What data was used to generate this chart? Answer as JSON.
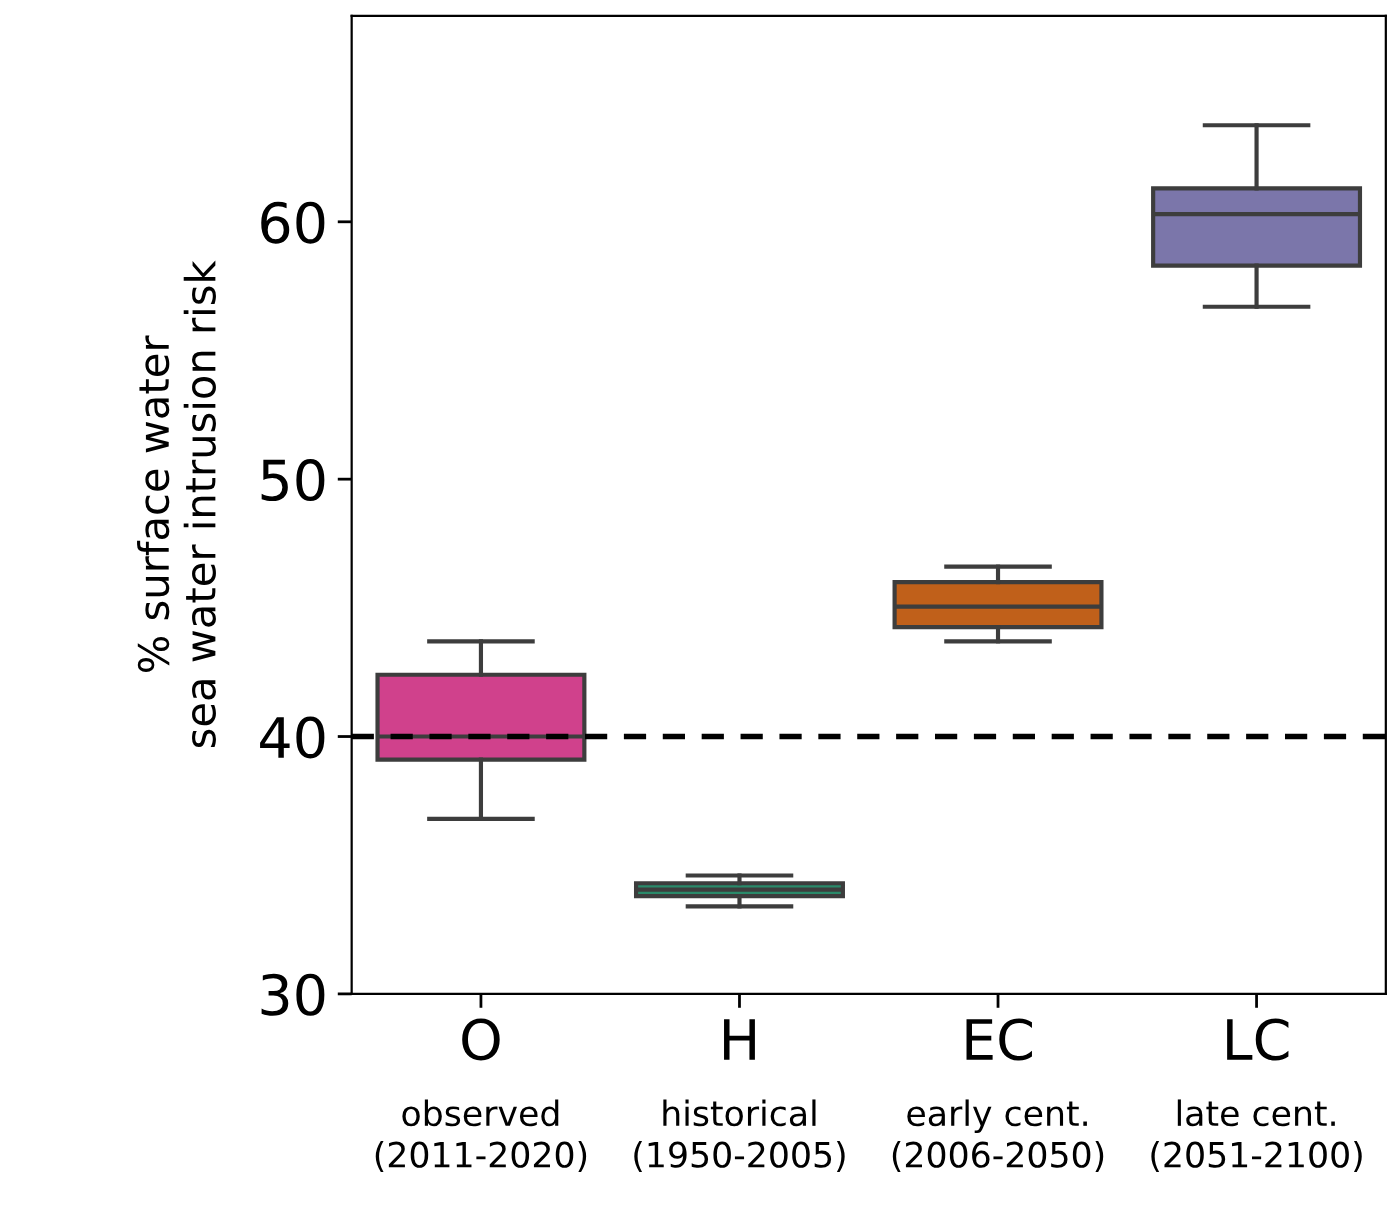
{
  "chart_data": {
    "type": "box",
    "ylabel": "% surface water\nsea water intrusion risk",
    "categories": [
      "O",
      "H",
      "EC",
      "LC"
    ],
    "annotations": [
      "observed\n(2011-2020)",
      "historical\n(1950-2005)",
      "early cent.\n(2006-2050)",
      "late cent.\n(2051-2100)"
    ],
    "colors": [
      "#d0418c",
      "#2a8a6a",
      "#c0601a",
      "#7b76aa"
    ],
    "boxes": [
      {
        "low": 36.8,
        "q1": 39.1,
        "median": 40.0,
        "q3": 42.4,
        "high": 43.7
      },
      {
        "low": 33.4,
        "q1": 33.8,
        "median": 34.05,
        "q3": 34.3,
        "high": 34.6
      },
      {
        "low": 43.7,
        "q1": 44.25,
        "median": 45.05,
        "q3": 46.0,
        "high": 46.6
      },
      {
        "low": 56.7,
        "q1": 58.3,
        "median": 60.3,
        "q3": 61.3,
        "high": 63.75
      }
    ],
    "ylim": [
      30,
      68
    ],
    "yticks": [
      30,
      40,
      50,
      60
    ],
    "ref_lines": [
      {
        "axis": "y",
        "value": 40,
        "line_style": "dashed",
        "color": "#000000"
      }
    ],
    "grid": false,
    "legend": false
  }
}
